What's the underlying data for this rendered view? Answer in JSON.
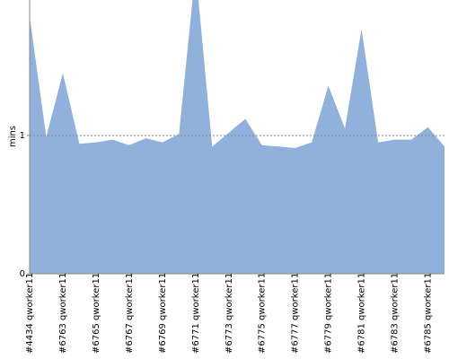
{
  "chart_data": {
    "type": "area",
    "y_label": "mins",
    "categories": [
      "#4434 qworker11",
      null,
      "#6763 qworker11",
      null,
      "#6765 qworker11",
      null,
      "#6767 qworker11",
      null,
      "#6769 qworker11",
      null,
      "#6771 qworker11",
      null,
      "#6773 qworker11",
      null,
      "#6775 qworker11",
      null,
      "#6777 qworker11",
      null,
      "#6779 qworker11",
      null,
      "#6781 qworker11",
      null,
      "#6783 qworker11",
      null,
      "#6785 qworker11",
      null
    ],
    "values": [
      1.86,
      0.99,
      1.45,
      0.94,
      0.95,
      0.97,
      0.93,
      0.98,
      0.95,
      1.01,
      2.2,
      0.92,
      1.02,
      1.12,
      0.93,
      0.92,
      0.91,
      0.95,
      1.36,
      1.05,
      1.77,
      0.95,
      0.97,
      0.97,
      1.06,
      0.92
    ],
    "color": "#8fb1dc",
    "ylim": [
      0,
      1.98
    ],
    "yticks": [
      0,
      1
    ],
    "grid": true
  }
}
